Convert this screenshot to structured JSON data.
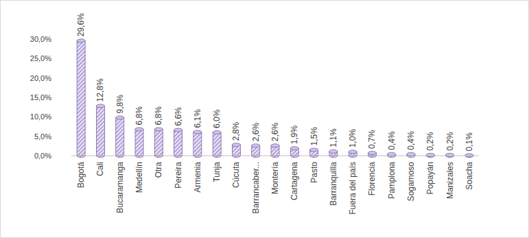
{
  "chart_data": {
    "type": "bar",
    "categories": [
      "Bogotá",
      "Cali",
      "Bucaramanga",
      "Medellín",
      "Otra",
      "Pereira",
      "Armenia",
      "Tunja",
      "Cúcuta",
      "Barrancaber...",
      "Montería",
      "Cartagena",
      "Pasto",
      "Barranquilla",
      "Fuera del país",
      "Florencia",
      "Pamplona",
      "Sogamoso",
      "Popayán",
      "Manizales",
      "Soacha"
    ],
    "values": [
      29.6,
      12.8,
      9.8,
      6.8,
      6.8,
      6.6,
      6.1,
      6.0,
      2.8,
      2.6,
      2.6,
      1.9,
      1.5,
      1.1,
      1.0,
      0.7,
      0.4,
      0.4,
      0.2,
      0.2,
      0.1
    ],
    "value_labels": [
      "29,6%",
      "12,8%",
      "9,8%",
      "6,8%",
      "6,8%",
      "6,6%",
      "6,1%",
      "6,0%",
      "2,8%",
      "2,6%",
      "2,6%",
      "1,9%",
      "1,5%",
      "1,1%",
      "1,0%",
      "0,7%",
      "0,4%",
      "0,4%",
      "0,2%",
      "0,2%",
      "0,1%"
    ],
    "color": "#8e7cc3",
    "ylim": [
      0,
      30
    ],
    "yticks": [
      {
        "value": 0,
        "label": "0,0%"
      },
      {
        "value": 5,
        "label": "5,0%"
      },
      {
        "value": 10,
        "label": "10,0%"
      },
      {
        "value": 15,
        "label": "15,0%"
      },
      {
        "value": 20,
        "label": "20,0%"
      },
      {
        "value": 25,
        "label": "25,0%"
      },
      {
        "value": 30,
        "label": "30,0%"
      }
    ],
    "data_labels": true,
    "grid": false
  }
}
